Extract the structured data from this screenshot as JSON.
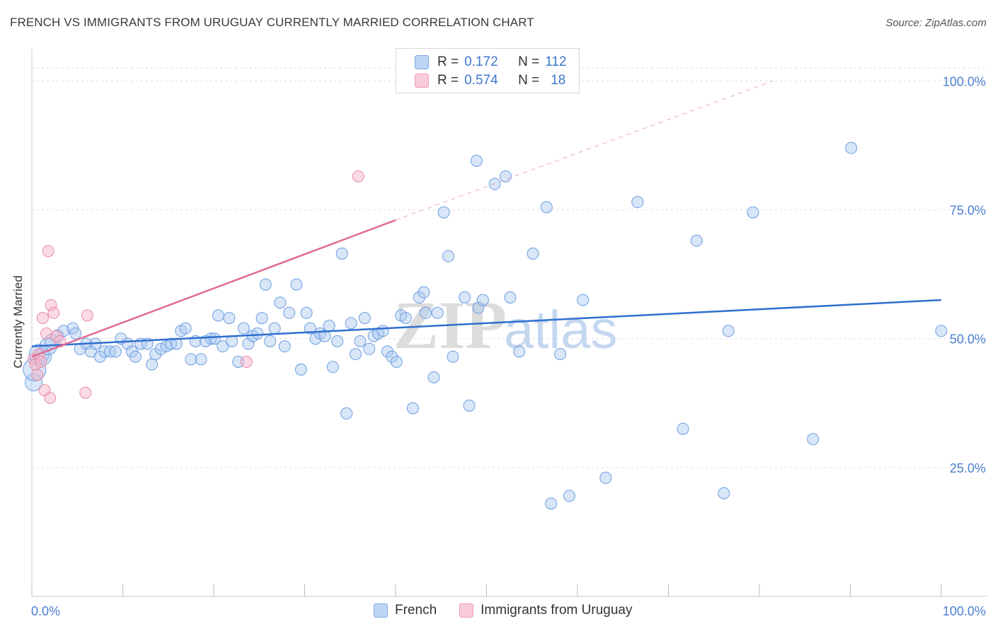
{
  "title": "FRENCH VS IMMIGRANTS FROM URUGUAY CURRENTLY MARRIED CORRELATION CHART",
  "source": "Source: ZipAtlas.com",
  "watermark": {
    "zip": "ZIP",
    "atlas": "atlas"
  },
  "legend": {
    "french": {
      "r_label": "R =",
      "r_value": "0.172",
      "n_label": "N =",
      "n_value": "112"
    },
    "uruguay": {
      "r_label": "R =",
      "r_value": "0.574",
      "n_label": "N =",
      "n_value": "18"
    }
  },
  "colors": {
    "french_fill": "#a9c8f0",
    "french_stroke": "#6d9de0",
    "french_line": "#2f6fcf",
    "uruguay_fill": "#f6b8cb",
    "uruguay_stroke": "#e98aa8",
    "uruguay_line": "#e06a93",
    "tick": "#4a7fd0",
    "grid": "#dddddd"
  },
  "chart_data": {
    "type": "scatter",
    "title": "FRENCH VS IMMIGRANTS FROM URUGUAY CURRENTLY MARRIED CORRELATION CHART",
    "xlabel": "",
    "ylabel": "Currently Married",
    "xlim": [
      0,
      100
    ],
    "ylim": [
      0,
      105
    ],
    "x_tick_labels": [
      "0.0%",
      "100.0%"
    ],
    "y_ticks": [
      25,
      50,
      75,
      100
    ],
    "y_tick_labels": [
      "25.0%",
      "50.0%",
      "75.0%",
      "100.0%"
    ],
    "legend_labels": [
      "French",
      "Immigrants from Uruguay"
    ],
    "series": [
      {
        "name": "French",
        "r": 0.172,
        "n": 112,
        "trend": {
          "x": [
            0,
            100
          ],
          "y": [
            48.5,
            57.5
          ]
        },
        "points": [
          {
            "x": 0.2,
            "y": 41.5,
            "r": 12
          },
          {
            "x": 0.3,
            "y": 44,
            "r": 16
          },
          {
            "x": 0.8,
            "y": 47,
            "r": 14
          },
          {
            "x": 1.2,
            "y": 46.5,
            "r": 12
          },
          {
            "x": 1.8,
            "y": 48.5,
            "r": 12
          },
          {
            "x": 2.2,
            "y": 49.5,
            "r": 10
          },
          {
            "x": 2.8,
            "y": 50.5,
            "r": 9
          },
          {
            "x": 3.5,
            "y": 51.5,
            "r": 8
          },
          {
            "x": 4.5,
            "y": 52,
            "r": 8
          },
          {
            "x": 4.8,
            "y": 51,
            "r": 8
          },
          {
            "x": 5.3,
            "y": 48,
            "r": 8
          },
          {
            "x": 6,
            "y": 49,
            "r": 8
          },
          {
            "x": 6.5,
            "y": 47.5,
            "r": 8
          },
          {
            "x": 7,
            "y": 49,
            "r": 8
          },
          {
            "x": 7.5,
            "y": 46.5,
            "r": 8
          },
          {
            "x": 8,
            "y": 47.5,
            "r": 8
          },
          {
            "x": 8.6,
            "y": 47.5,
            "r": 8
          },
          {
            "x": 9.2,
            "y": 47.5,
            "r": 8
          },
          {
            "x": 9.8,
            "y": 50,
            "r": 8
          },
          {
            "x": 10.5,
            "y": 49,
            "r": 8
          },
          {
            "x": 11,
            "y": 47.5,
            "r": 8
          },
          {
            "x": 11.4,
            "y": 46.5,
            "r": 8
          },
          {
            "x": 12,
            "y": 49,
            "r": 8
          },
          {
            "x": 12.7,
            "y": 49,
            "r": 8
          },
          {
            "x": 13.2,
            "y": 45,
            "r": 8
          },
          {
            "x": 13.6,
            "y": 47,
            "r": 8
          },
          {
            "x": 14.2,
            "y": 48,
            "r": 8
          },
          {
            "x": 14.8,
            "y": 48.5,
            "r": 8
          },
          {
            "x": 15.3,
            "y": 49,
            "r": 8
          },
          {
            "x": 15.9,
            "y": 49,
            "r": 8
          },
          {
            "x": 16.4,
            "y": 51.5,
            "r": 8
          },
          {
            "x": 16.9,
            "y": 52,
            "r": 8
          },
          {
            "x": 17.5,
            "y": 46,
            "r": 8
          },
          {
            "x": 18,
            "y": 49.5,
            "r": 8
          },
          {
            "x": 18.6,
            "y": 46,
            "r": 8
          },
          {
            "x": 19.1,
            "y": 49.5,
            "r": 8
          },
          {
            "x": 19.7,
            "y": 50,
            "r": 8
          },
          {
            "x": 20.1,
            "y": 50,
            "r": 8
          },
          {
            "x": 20.5,
            "y": 54.5,
            "r": 8
          },
          {
            "x": 21,
            "y": 48.5,
            "r": 8
          },
          {
            "x": 21.7,
            "y": 54,
            "r": 8
          },
          {
            "x": 22,
            "y": 49.5,
            "r": 8
          },
          {
            "x": 22.7,
            "y": 45.5,
            "r": 8
          },
          {
            "x": 23.3,
            "y": 52,
            "r": 8
          },
          {
            "x": 23.8,
            "y": 49,
            "r": 8
          },
          {
            "x": 24.3,
            "y": 50.5,
            "r": 8
          },
          {
            "x": 24.8,
            "y": 51,
            "r": 8
          },
          {
            "x": 25.3,
            "y": 54,
            "r": 8
          },
          {
            "x": 25.7,
            "y": 60.5,
            "r": 8
          },
          {
            "x": 26.2,
            "y": 49.5,
            "r": 8
          },
          {
            "x": 26.7,
            "y": 52,
            "r": 8
          },
          {
            "x": 27.3,
            "y": 57,
            "r": 8
          },
          {
            "x": 27.8,
            "y": 48.5,
            "r": 8
          },
          {
            "x": 28.3,
            "y": 55,
            "r": 8
          },
          {
            "x": 29.1,
            "y": 60.5,
            "r": 8
          },
          {
            "x": 29.6,
            "y": 44,
            "r": 8
          },
          {
            "x": 30.2,
            "y": 55,
            "r": 8
          },
          {
            "x": 30.6,
            "y": 52,
            "r": 8
          },
          {
            "x": 31.2,
            "y": 50,
            "r": 8
          },
          {
            "x": 31.7,
            "y": 51,
            "r": 8
          },
          {
            "x": 32.2,
            "y": 50.5,
            "r": 8
          },
          {
            "x": 32.7,
            "y": 52.5,
            "r": 8
          },
          {
            "x": 33.1,
            "y": 44.5,
            "r": 8
          },
          {
            "x": 33.6,
            "y": 49.5,
            "r": 8
          },
          {
            "x": 34.1,
            "y": 66.5,
            "r": 8
          },
          {
            "x": 34.6,
            "y": 35.5,
            "r": 8
          },
          {
            "x": 35.1,
            "y": 53,
            "r": 8
          },
          {
            "x": 35.6,
            "y": 47,
            "r": 8
          },
          {
            "x": 36.1,
            "y": 49.5,
            "r": 8
          },
          {
            "x": 36.6,
            "y": 54,
            "r": 8
          },
          {
            "x": 37.1,
            "y": 48,
            "r": 8
          },
          {
            "x": 37.6,
            "y": 50.5,
            "r": 8
          },
          {
            "x": 38.1,
            "y": 51,
            "r": 8
          },
          {
            "x": 38.6,
            "y": 51.5,
            "r": 8
          },
          {
            "x": 39.1,
            "y": 47.5,
            "r": 8
          },
          {
            "x": 39.6,
            "y": 46.5,
            "r": 8
          },
          {
            "x": 40.1,
            "y": 45.5,
            "r": 8
          },
          {
            "x": 40.6,
            "y": 54.5,
            "r": 8
          },
          {
            "x": 41.1,
            "y": 54,
            "r": 8
          },
          {
            "x": 41.9,
            "y": 36.5,
            "r": 8
          },
          {
            "x": 42.6,
            "y": 58,
            "r": 8
          },
          {
            "x": 43.1,
            "y": 59,
            "r": 8
          },
          {
            "x": 43.3,
            "y": 55,
            "r": 8
          },
          {
            "x": 44.2,
            "y": 42.5,
            "r": 8
          },
          {
            "x": 44.6,
            "y": 55,
            "r": 8
          },
          {
            "x": 45.3,
            "y": 74.5,
            "r": 8
          },
          {
            "x": 45.8,
            "y": 66,
            "r": 8
          },
          {
            "x": 46.3,
            "y": 46.5,
            "r": 8
          },
          {
            "x": 47.6,
            "y": 58,
            "r": 8
          },
          {
            "x": 48.1,
            "y": 37,
            "r": 8
          },
          {
            "x": 49.1,
            "y": 56,
            "r": 8
          },
          {
            "x": 48.9,
            "y": 84.5,
            "r": 8
          },
          {
            "x": 49.6,
            "y": 57.5,
            "r": 8
          },
          {
            "x": 50.9,
            "y": 80,
            "r": 8
          },
          {
            "x": 52.1,
            "y": 81.5,
            "r": 8
          },
          {
            "x": 52.6,
            "y": 58,
            "r": 8
          },
          {
            "x": 53.6,
            "y": 47.5,
            "r": 8
          },
          {
            "x": 55.1,
            "y": 66.5,
            "r": 8
          },
          {
            "x": 56.6,
            "y": 75.5,
            "r": 8
          },
          {
            "x": 57.1,
            "y": 18,
            "r": 8
          },
          {
            "x": 58.1,
            "y": 47,
            "r": 8
          },
          {
            "x": 59.1,
            "y": 19.5,
            "r": 8
          },
          {
            "x": 60.6,
            "y": 57.5,
            "r": 8
          },
          {
            "x": 63.1,
            "y": 23,
            "r": 8
          },
          {
            "x": 66.6,
            "y": 76.5,
            "r": 8
          },
          {
            "x": 71.6,
            "y": 32.5,
            "r": 8
          },
          {
            "x": 73.1,
            "y": 69,
            "r": 8
          },
          {
            "x": 76.1,
            "y": 20,
            "r": 8
          },
          {
            "x": 76.6,
            "y": 51.5,
            "r": 8
          },
          {
            "x": 79.3,
            "y": 74.5,
            "r": 8
          },
          {
            "x": 85.9,
            "y": 30.5,
            "r": 8
          },
          {
            "x": 90.1,
            "y": 87,
            "r": 8
          },
          {
            "x": 100,
            "y": 51.5,
            "r": 8
          }
        ]
      },
      {
        "name": "Immigrants from Uruguay",
        "r": 0.574,
        "n": 18,
        "trend": {
          "x": [
            0,
            40
          ],
          "y": [
            46.5,
            73
          ]
        },
        "trend_extension": {
          "x": [
            40,
            81.5
          ],
          "y": [
            73,
            100
          ]
        },
        "points": [
          {
            "x": 0.2,
            "y": 46,
            "r": 8
          },
          {
            "x": 0.4,
            "y": 45,
            "r": 8
          },
          {
            "x": 0.6,
            "y": 43,
            "r": 8
          },
          {
            "x": 0.8,
            "y": 47,
            "r": 8
          },
          {
            "x": 1,
            "y": 45.5,
            "r": 8
          },
          {
            "x": 1.2,
            "y": 54,
            "r": 8
          },
          {
            "x": 1.4,
            "y": 40,
            "r": 8
          },
          {
            "x": 1.6,
            "y": 51,
            "r": 8
          },
          {
            "x": 1.8,
            "y": 67,
            "r": 8
          },
          {
            "x": 2,
            "y": 38.5,
            "r": 8
          },
          {
            "x": 2.1,
            "y": 56.5,
            "r": 8
          },
          {
            "x": 2.4,
            "y": 55,
            "r": 8
          },
          {
            "x": 2.7,
            "y": 50.5,
            "r": 8
          },
          {
            "x": 3.1,
            "y": 49.5,
            "r": 8
          },
          {
            "x": 5.9,
            "y": 39.5,
            "r": 8
          },
          {
            "x": 6.1,
            "y": 54.5,
            "r": 8
          },
          {
            "x": 23.6,
            "y": 45.5,
            "r": 8
          },
          {
            "x": 35.9,
            "y": 81.5,
            "r": 8
          }
        ]
      }
    ]
  }
}
